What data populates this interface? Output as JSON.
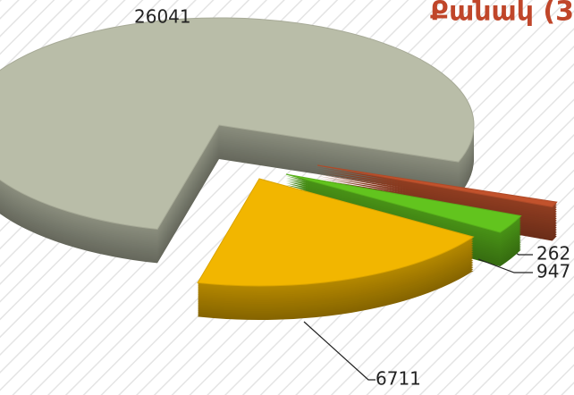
{
  "chart_data": {
    "type": "pie",
    "title": "Քանակ (3",
    "categories": [
      null,
      null,
      null,
      null
    ],
    "values": [
      26041,
      262,
      947,
      6711
    ],
    "colors": [
      "#b9bda8",
      "#c2522c",
      "#62c41e",
      "#f2b600"
    ],
    "start_angle": 104,
    "exploded": true,
    "legend": false
  }
}
